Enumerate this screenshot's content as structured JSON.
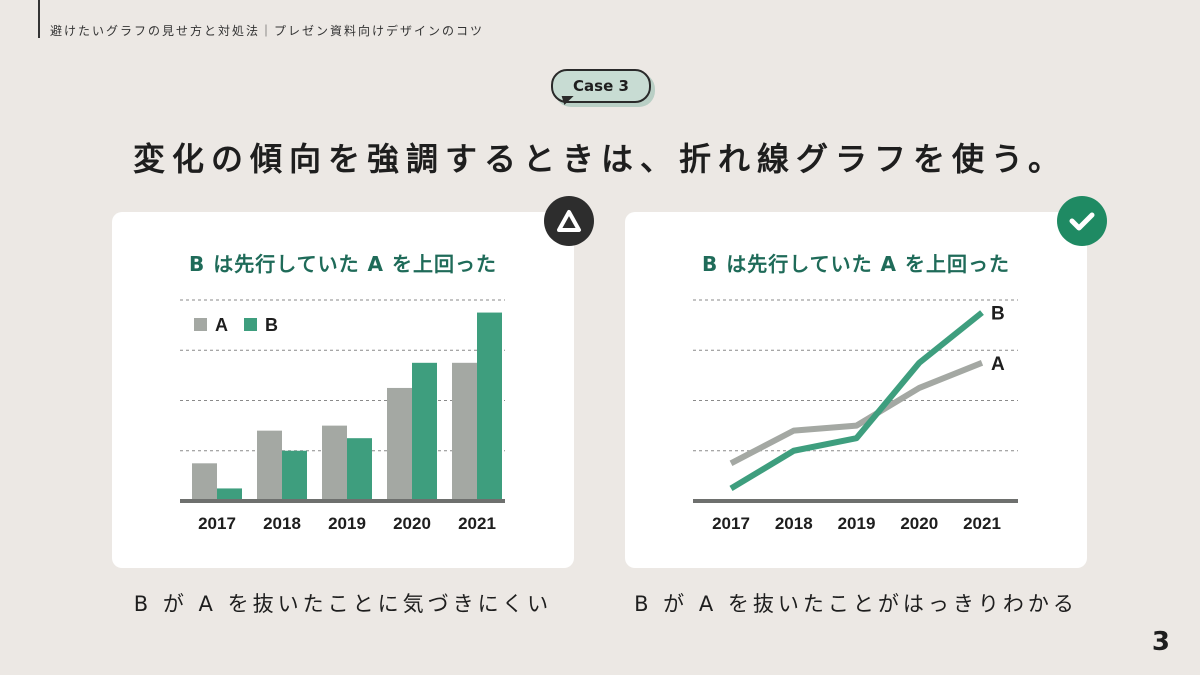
{
  "header": {
    "title": "避けたいグラフの見せ方と対処法｜プレゼン資料向けデザインのコツ"
  },
  "case_label": "Case 3",
  "main_title": "変化の傾向を強調するときは、折れ線グラフを使う。",
  "left_panel": {
    "title": "B は先行していた A を上回った",
    "caption": "B が A を抜いたことに気づきにくい",
    "badge_icon": "warning-triangle-icon"
  },
  "right_panel": {
    "title": "B は先行していた A を上回った",
    "caption": "B が A を抜いたことがはっきりわかる",
    "badge_icon": "check-icon"
  },
  "page_number": "3",
  "colors": {
    "series_a": "#a4a8a3",
    "series_b": "#3e9e7e",
    "grid": "#8a8a8a",
    "axis": "#6e706e"
  },
  "chart_data": [
    {
      "type": "bar",
      "categories": [
        "2017",
        "2018",
        "2019",
        "2020",
        "2021"
      ],
      "series": [
        {
          "name": "A",
          "values": [
            1.5,
            2.8,
            3.0,
            4.5,
            5.5
          ]
        },
        {
          "name": "B",
          "values": [
            0.5,
            2.0,
            2.5,
            5.5,
            7.5
          ]
        }
      ],
      "ylim": [
        0,
        8
      ],
      "legend": "top-left",
      "grid": true
    },
    {
      "type": "line",
      "categories": [
        "2017",
        "2018",
        "2019",
        "2020",
        "2021"
      ],
      "series": [
        {
          "name": "A",
          "values": [
            1.5,
            2.8,
            3.0,
            4.5,
            5.5
          ]
        },
        {
          "name": "B",
          "values": [
            0.5,
            2.0,
            2.5,
            5.5,
            7.5
          ]
        }
      ],
      "ylim": [
        0,
        8
      ],
      "legend": "end-labels",
      "grid": true
    }
  ]
}
